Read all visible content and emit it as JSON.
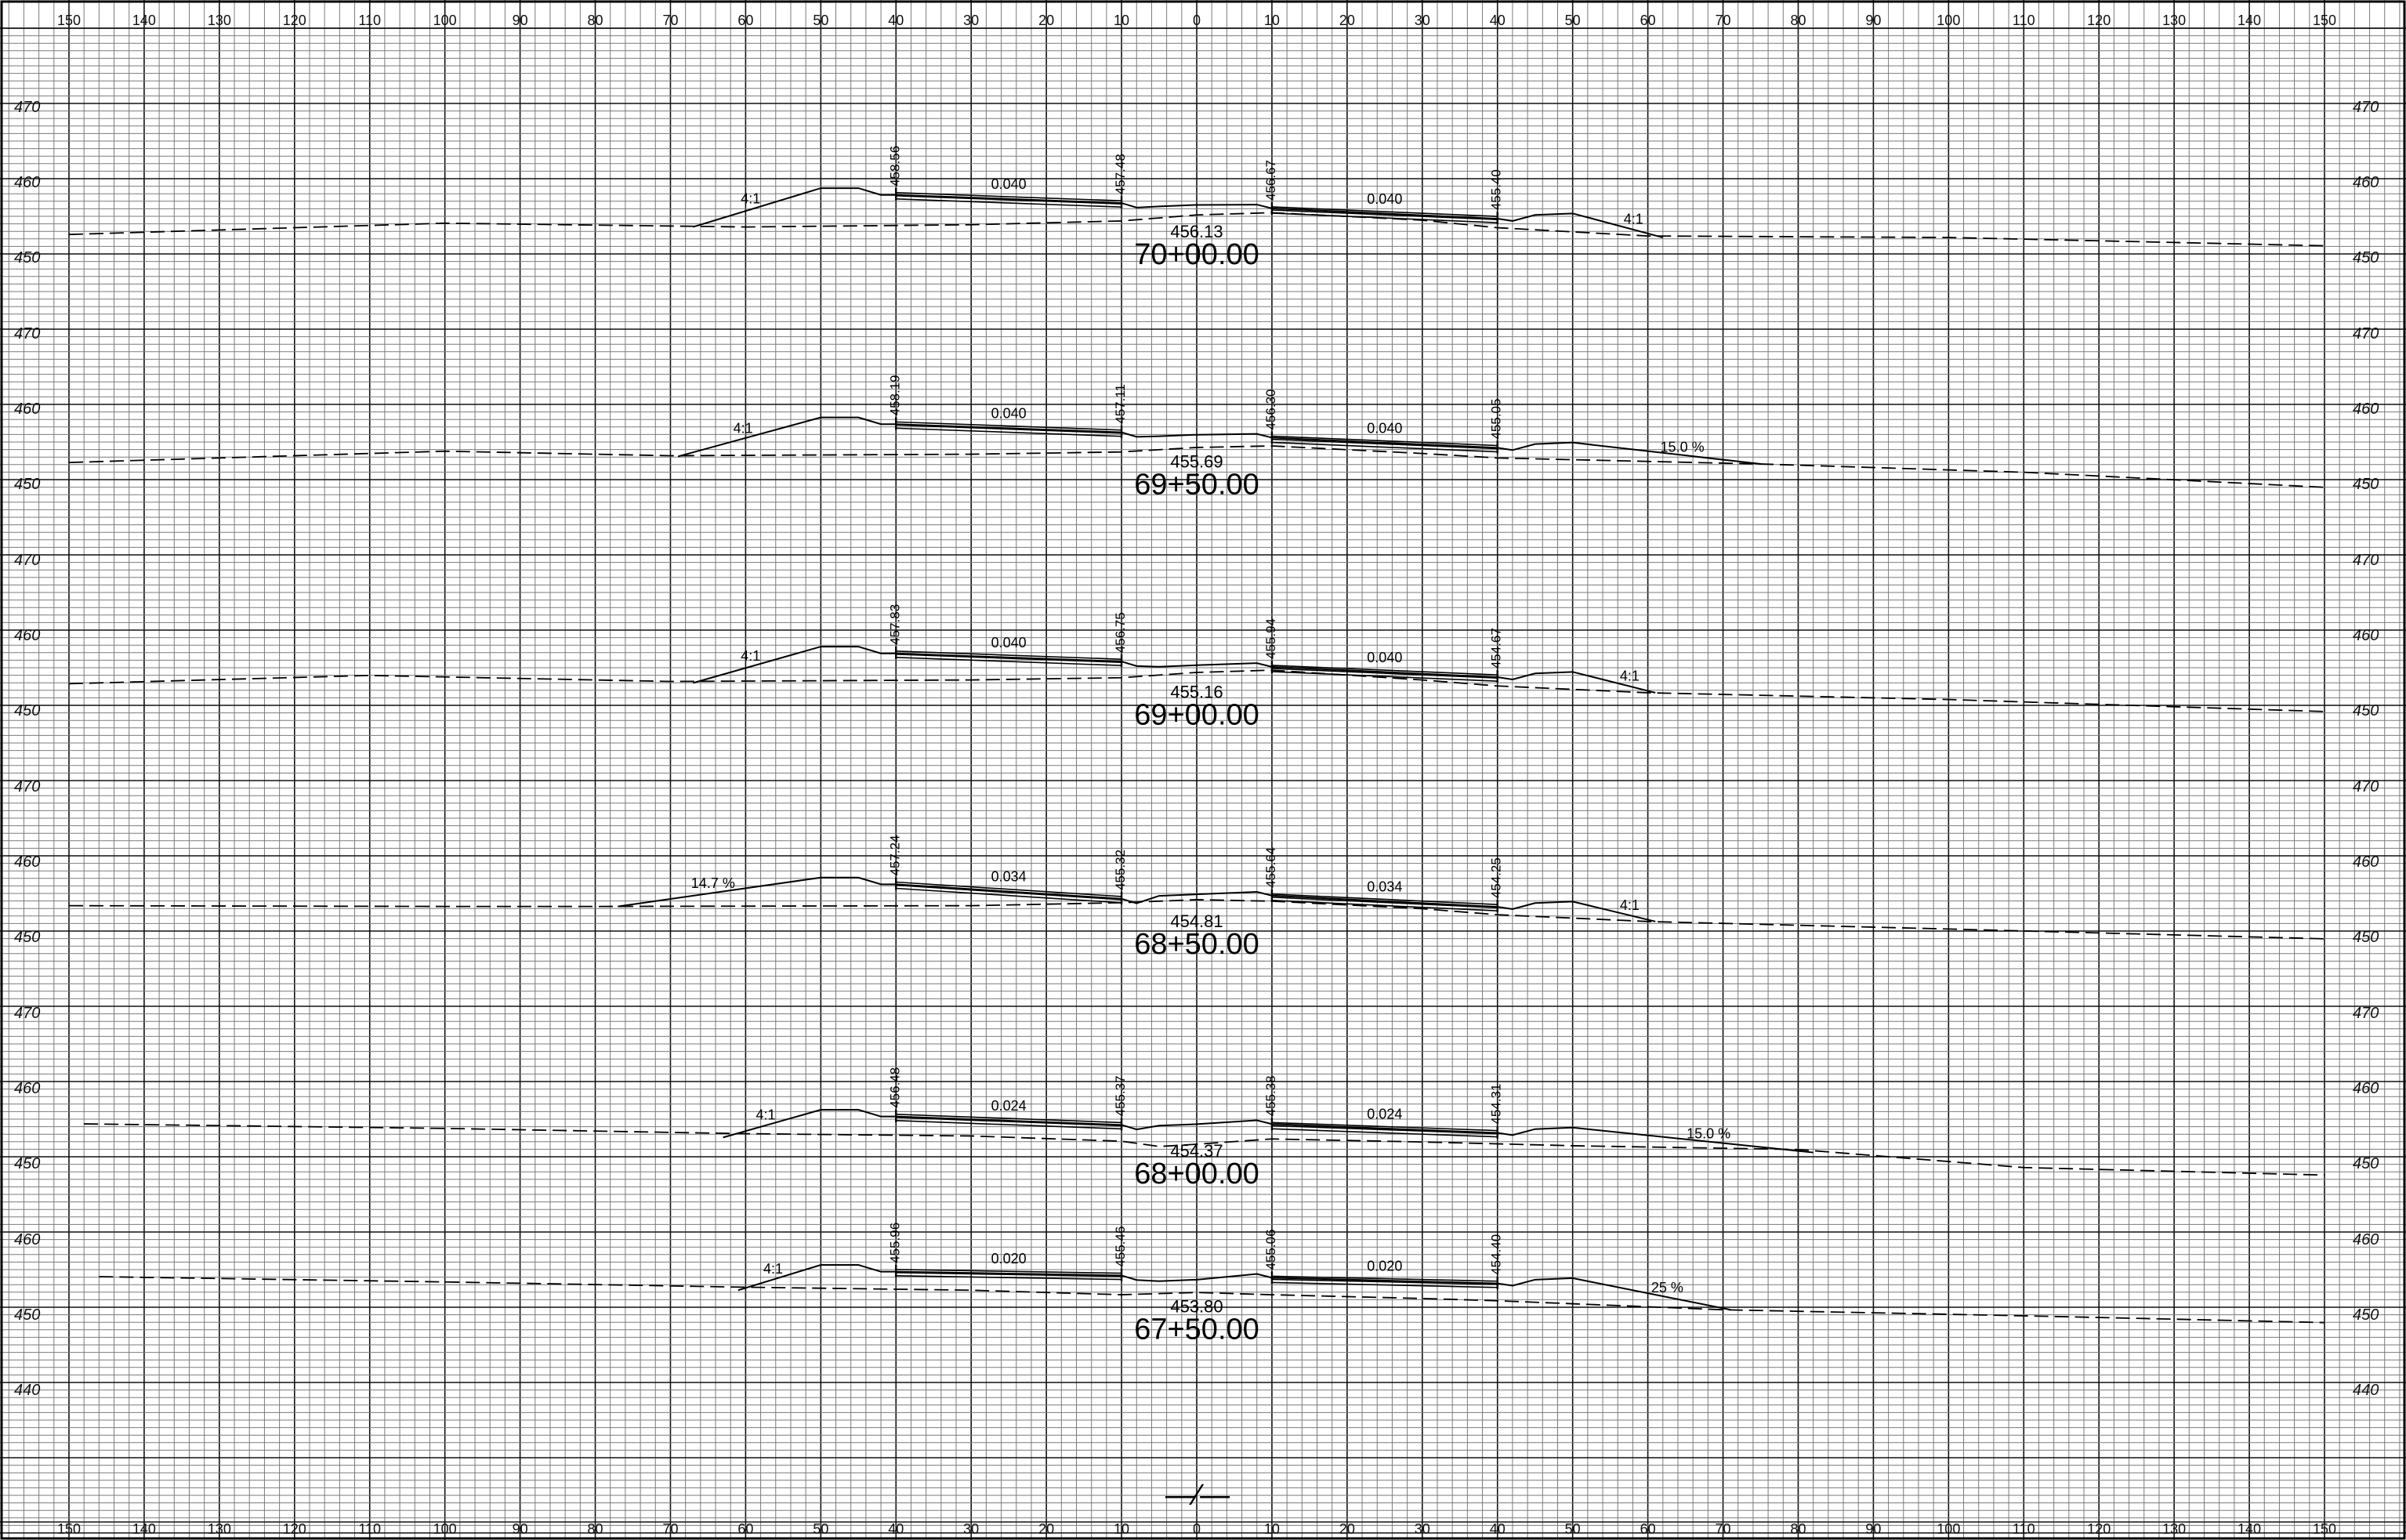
{
  "sheet": {
    "offset_ticks_top": [
      "150",
      "140",
      "130",
      "120",
      "110",
      "100",
      "90",
      "80",
      "70",
      "60",
      "50",
      "40",
      "30",
      "20",
      "10",
      "0",
      "10",
      "20",
      "30",
      "40",
      "50",
      "60",
      "70",
      "80",
      "90",
      "100",
      "110",
      "120",
      "130",
      "140",
      "150"
    ],
    "offset_ticks_bottom": [
      "150",
      "140",
      "130",
      "120",
      "110",
      "100",
      "90",
      "80",
      "70",
      "60",
      "50",
      "40",
      "30",
      "20",
      "10",
      "0",
      "10",
      "20",
      "30",
      "40",
      "50",
      "60",
      "70",
      "80",
      "90",
      "100",
      "110",
      "120",
      "130",
      "140",
      "150"
    ],
    "centerline_symbol": "—⁄—",
    "x_range": [
      -150,
      150
    ],
    "colors": {
      "grid_minor": "#7a7a7a",
      "grid_major": "#111111",
      "lines": "#000000",
      "background": "#ffffff"
    }
  },
  "sections": [
    {
      "station": "70+00.00",
      "pgl": "456.13",
      "elev_top": "470",
      "elev_mid": "460",
      "elev_bot": "450",
      "elev_range": [
        446,
        474
      ],
      "cross_slope_left": "0.040",
      "cross_slope_right": "0.040",
      "slope_left": "4:1",
      "slope_right": "4:1",
      "edge_elevations": [
        "458.56",
        "457.48",
        "456.67",
        "455.40"
      ],
      "edge_values": [
        458.56,
        457.48,
        456.67,
        455.4
      ],
      "ground": {
        "x": [
          -150,
          -100,
          -60,
          -30,
          -10,
          0,
          10,
          30,
          40,
          60,
          100,
          150
        ],
        "y": [
          453.0,
          454.5,
          454.0,
          454.3,
          454.8,
          455.6,
          455.9,
          454.9,
          453.9,
          452.8,
          452.6,
          451.5
        ]
      },
      "design_left_end": [
        -67,
        454.0
      ],
      "design_right_end": [
        62,
        452.6
      ]
    },
    {
      "station": "69+50.00",
      "pgl": "455.69",
      "elev_top": "470",
      "elev_mid": "460",
      "elev_bot": "450",
      "elev_range": [
        446,
        474
      ],
      "cross_slope_left": "0.040",
      "cross_slope_right": "0.040",
      "slope_left": "4:1",
      "slope_right": "15.0 %",
      "edge_elevations": [
        "458.19",
        "457.11",
        "456.30",
        "455.05"
      ],
      "edge_values": [
        458.19,
        457.11,
        456.3,
        455.05
      ],
      "ground": {
        "x": [
          -150,
          -100,
          -70,
          -30,
          -10,
          0,
          10,
          30,
          40,
          75,
          110,
          150
        ],
        "y": [
          452.8,
          454.3,
          453.7,
          453.9,
          454.2,
          454.8,
          455.0,
          454.0,
          453.4,
          452.6,
          451.5,
          449.5
        ]
      },
      "design_left_end": [
        -69,
        453.6
      ],
      "design_right_end": [
        75,
        452.6
      ]
    },
    {
      "station": "69+00.00",
      "pgl": "455.16",
      "elev_top": "470",
      "elev_mid": "460",
      "elev_bot": "450",
      "elev_range": [
        446,
        474
      ],
      "cross_slope_left": "0.040",
      "cross_slope_right": "0.040",
      "slope_left": "4:1",
      "slope_right": "4:1",
      "edge_elevations": [
        "457.83",
        "456.75",
        "455.94",
        "454.67"
      ],
      "edge_values": [
        457.83,
        456.75,
        455.94,
        454.67
      ],
      "ground": {
        "x": [
          -150,
          -110,
          -70,
          -30,
          -10,
          0,
          10,
          30,
          40,
          60,
          100,
          150
        ],
        "y": [
          453.5,
          454.6,
          453.8,
          454.0,
          454.3,
          455.0,
          455.3,
          454.0,
          453.2,
          452.3,
          451.4,
          449.8
        ]
      },
      "design_left_end": [
        -67,
        453.6
      ],
      "design_right_end": [
        61,
        452.3
      ]
    },
    {
      "station": "68+50.00",
      "pgl": "454.81",
      "elev_top": "470",
      "elev_mid": "460",
      "elev_bot": "450",
      "elev_range": [
        446,
        474
      ],
      "cross_slope_left": "0.034",
      "cross_slope_right": "0.034",
      "slope_left": "14.7 %",
      "slope_right": "4:1",
      "edge_elevations": [
        "457.24",
        "455.32",
        "455.64",
        "454.25"
      ],
      "edge_values": [
        457.24,
        455.32,
        455.64,
        454.25
      ],
      "ground": {
        "x": [
          -150,
          -100,
          -80,
          -30,
          -10,
          0,
          10,
          30,
          40,
          60,
          100,
          150
        ],
        "y": [
          454.1,
          454.0,
          454.0,
          454.1,
          454.5,
          454.9,
          454.7,
          453.7,
          452.9,
          452.0,
          451.0,
          449.7
        ]
      },
      "design_left_end": [
        -77,
        454.0
      ],
      "design_right_end": [
        61,
        452.0
      ]
    },
    {
      "station": "68+00.00",
      "pgl": "454.37",
      "elev_top": "470",
      "elev_mid": "460",
      "elev_bot": "450",
      "elev_range": [
        446,
        474
      ],
      "cross_slope_left": "0.024",
      "cross_slope_right": "0.024",
      "slope_left": "4:1",
      "slope_right": "15.0 %",
      "edge_elevations": [
        "456.48",
        "455.37",
        "455.38",
        "454.31"
      ],
      "edge_values": [
        456.48,
        455.37,
        455.38,
        454.31
      ],
      "ground": {
        "x": [
          -148,
          -100,
          -60,
          -30,
          -10,
          -5,
          0,
          10,
          30,
          50,
          80,
          110,
          150
        ],
        "y": [
          455.2,
          454.6,
          453.9,
          453.6,
          452.9,
          452.2,
          452.5,
          453.2,
          452.8,
          452.3,
          451.8,
          449.4,
          448.4
        ]
      },
      "design_left_end": [
        -63,
        453.4
      ],
      "design_right_end": [
        82,
        451.4
      ]
    },
    {
      "station": "67+50.00",
      "pgl": "453.80",
      "elev_top": "460",
      "elev_mid": "450",
      "elev_bot": "440",
      "elev_range": [
        436,
        466
      ],
      "cross_slope_left": "0.020",
      "cross_slope_right": "0.020",
      "slope_left": "4:1",
      "slope_right": "25 %",
      "edge_elevations": [
        "455.96",
        "455.46",
        "455.06",
        "454.40"
      ],
      "edge_values": [
        455.96,
        455.46,
        455.06,
        454.4
      ],
      "ground": {
        "x": [
          -146,
          -100,
          -60,
          -30,
          -10,
          0,
          10,
          30,
          40,
          70,
          110,
          150
        ],
        "y": [
          455.0,
          454.3,
          453.6,
          453.2,
          452.6,
          452.9,
          452.6,
          452.1,
          451.8,
          450.6,
          449.8,
          448.9
        ]
      },
      "design_left_end": [
        -61,
        453.2
      ],
      "design_right_end": [
        71,
        450.6
      ]
    }
  ]
}
